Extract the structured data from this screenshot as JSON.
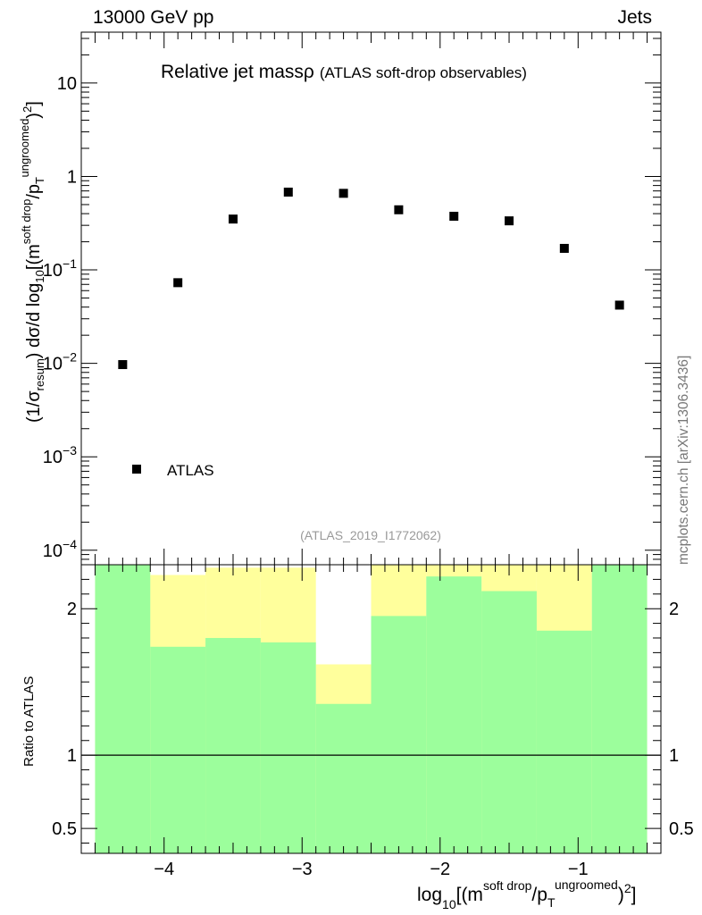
{
  "header": {
    "left": "13000 GeV pp",
    "right": "Jets"
  },
  "sidebar_credit": "mcplots.cern.ch [arXiv:1306.3436]",
  "chart_data": [
    {
      "type": "scatter",
      "title": "Relative jet massρ",
      "subtitle": "(ATLAS soft-drop observables)",
      "analysis_label": "(ATLAS_2019_I1772062)",
      "ylabel": "(1/σresum) dσ/d log10[(m soft drop/pT ungroomed)2]",
      "yscale": "log",
      "ylim": [
        7e-05,
        35
      ],
      "xlim": [
        -4.6,
        -0.4
      ],
      "yticks": [
        {
          "value": 0.0001,
          "base": "10",
          "exp": "−4"
        },
        {
          "value": 0.001,
          "base": "10",
          "exp": "−3"
        },
        {
          "value": 0.01,
          "base": "10",
          "exp": "−2"
        },
        {
          "value": 0.1,
          "base": "10",
          "exp": "−1"
        },
        {
          "value": 1,
          "base": "1",
          "exp": ""
        },
        {
          "value": 10,
          "base": "10",
          "exp": ""
        }
      ],
      "series": [
        {
          "name": "ATLAS",
          "x": [
            -4.3,
            -3.9,
            -3.5,
            -3.1,
            -2.7,
            -2.3,
            -1.9,
            -1.5,
            -1.1,
            -0.7
          ],
          "values": [
            0.0097,
            0.073,
            0.35,
            0.68,
            0.66,
            0.44,
            0.375,
            0.335,
            0.17,
            0.042
          ]
        }
      ]
    },
    {
      "type": "area",
      "ylabel": "Ratio to ATLAS",
      "xlabel": "log10[(m soft drop/pT ungroomed)2]",
      "xlim": [
        -4.6,
        -0.4
      ],
      "ylim": [
        0.33,
        2.3
      ],
      "xticks": [
        {
          "value": -4,
          "label": "−4"
        },
        {
          "value": -3,
          "label": "−3"
        },
        {
          "value": -2,
          "label": "−2"
        },
        {
          "value": -1,
          "label": "−1"
        }
      ],
      "yticks": [
        {
          "value": 0.5,
          "label": "0.5"
        },
        {
          "value": 1,
          "label": "1"
        },
        {
          "value": 2,
          "label": "2"
        }
      ],
      "bin_edges": [
        -4.5,
        -4.1,
        -3.7,
        -3.3,
        -2.9,
        -2.5,
        -2.1,
        -1.7,
        -1.3,
        -0.9,
        -0.5
      ],
      "green_band": {
        "color": "#9cfe9c",
        "low": [
          0.33,
          0.33,
          0.33,
          0.33,
          0.33,
          0.33,
          0.33,
          0.33,
          0.33,
          0.33
        ],
        "high": [
          2.3,
          1.74,
          1.8,
          1.77,
          1.35,
          1.95,
          2.22,
          2.12,
          1.85,
          2.3
        ]
      },
      "yellow_band": {
        "color": "#ffff9c",
        "low": [
          0.33,
          0.33,
          0.33,
          0.33,
          0.47,
          0.33,
          0.33,
          0.33,
          0.33,
          0.33
        ],
        "high": [
          2.3,
          2.23,
          2.28,
          2.28,
          1.62,
          2.3,
          2.3,
          2.3,
          2.3,
          2.3
        ]
      },
      "reference_line": 1
    }
  ]
}
